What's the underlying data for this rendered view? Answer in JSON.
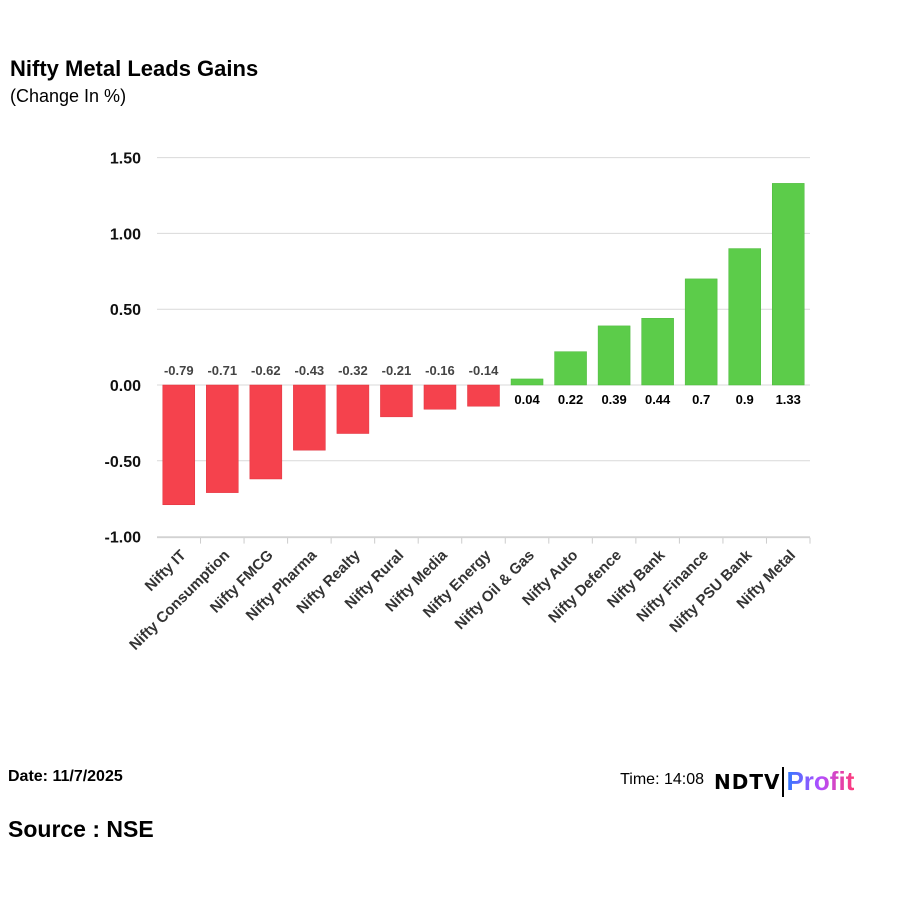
{
  "header": {
    "title": "Nifty Metal Leads Gains",
    "subtitle": "(Change In %)"
  },
  "footer": {
    "date": "Date: 11/7/2025",
    "source": "Source : NSE",
    "time": "Time: 14:08",
    "logo_text": "NDTV Profit"
  },
  "colors": {
    "positive": "#5ccc4a",
    "negative": "#f5424d",
    "grid": "#d9d9d9"
  },
  "chart_data": {
    "type": "bar",
    "title": "Nifty Metal Leads Gains",
    "subtitle": "(Change In %)",
    "categories": [
      "Nifty IT",
      "Nifty Consumption",
      "Nifty FMCG",
      "Nifty Pharma",
      "Nifty Realty",
      "Nifty Rural",
      "Nifty Media",
      "Nifty Energy",
      "Nifty Oil & Gas",
      "Nifty Auto",
      "Nifty Defence",
      "Nifty Bank",
      "Nifty Finance",
      "Nifty PSU Bank",
      "Nifty Metal"
    ],
    "values": [
      -0.79,
      -0.71,
      -0.62,
      -0.43,
      -0.32,
      -0.21,
      -0.16,
      -0.14,
      0.04,
      0.22,
      0.39,
      0.44,
      0.7,
      0.9,
      1.33
    ],
    "data_labels": [
      "-0.79",
      "-0.71",
      "-0.62",
      "-0.43",
      "-0.32",
      "-0.21",
      "-0.16",
      "-0.14",
      "0.04",
      "0.22",
      "0.39",
      "0.44",
      "0.7",
      "0.9",
      "1.33"
    ],
    "yticks": [
      "1.50",
      "1.00",
      "0.50",
      "0.00",
      "-0.50",
      "-1.00"
    ],
    "ylim": [
      -1.0,
      1.5
    ],
    "grid": true,
    "xlabel": "",
    "ylabel": ""
  }
}
